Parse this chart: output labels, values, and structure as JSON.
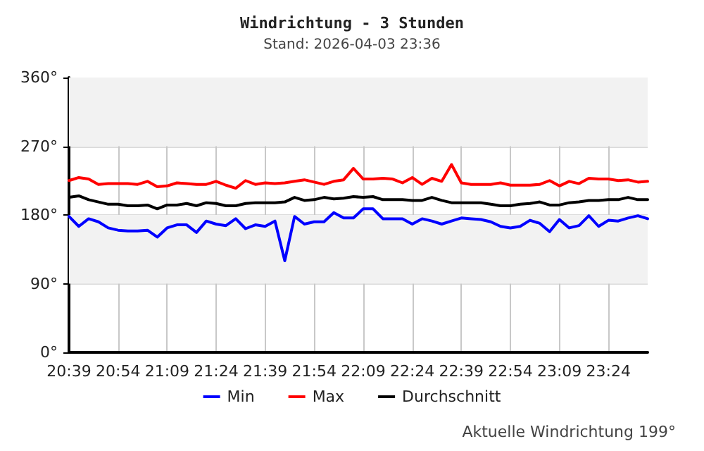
{
  "chart_data": {
    "type": "line",
    "title": "Windrichtung - 3 Stunden",
    "subtitle": "Stand: 2026-04-03 23:36",
    "annotations": [
      "Aktuelle Windrichtung 199°"
    ],
    "x": [
      20.65,
      20.7,
      20.75,
      20.8,
      20.85,
      20.9,
      20.95,
      21.0,
      21.05,
      21.1,
      21.15,
      21.2,
      21.25,
      21.3,
      21.35,
      21.4,
      21.45,
      21.5,
      21.55,
      21.6,
      21.65,
      21.7,
      21.75,
      21.8,
      21.85,
      21.9,
      21.95,
      22.0,
      22.05,
      22.1,
      22.15,
      22.2,
      22.25,
      22.3,
      22.35,
      22.4,
      22.45,
      22.5,
      22.55,
      22.6,
      22.65,
      22.7,
      22.75,
      22.8,
      22.85,
      22.9,
      22.95,
      23.0,
      23.05,
      23.1,
      23.15,
      23.2,
      23.25,
      23.3,
      23.35,
      23.4,
      23.45,
      23.5,
      23.55,
      23.6
    ],
    "series": [
      {
        "name": "Min",
        "color": "#0000ff",
        "values": [
          178,
          165,
          175,
          171,
          163,
          160,
          159,
          159,
          160,
          151,
          163,
          167,
          167,
          157,
          172,
          168,
          166,
          175,
          162,
          167,
          165,
          172,
          120,
          178,
          168,
          171,
          171,
          183,
          176,
          176,
          188,
          188,
          175,
          175,
          175,
          168,
          175,
          172,
          168,
          172,
          176,
          175,
          174,
          171,
          165,
          163,
          165,
          173,
          169,
          158,
          174,
          163,
          166,
          179,
          165,
          173,
          172,
          176,
          179,
          175
        ]
      },
      {
        "name": "Max",
        "color": "#ff0000",
        "values": [
          225,
          229,
          227,
          220,
          221,
          221,
          221,
          220,
          224,
          217,
          218,
          222,
          221,
          220,
          220,
          224,
          219,
          215,
          225,
          220,
          222,
          221,
          222,
          224,
          226,
          223,
          220,
          224,
          226,
          241,
          227,
          227,
          228,
          227,
          222,
          229,
          220,
          228,
          224,
          246,
          222,
          220,
          220,
          220,
          222,
          219,
          219,
          219,
          220,
          225,
          218,
          224,
          221,
          228,
          227,
          227,
          225,
          226,
          223,
          224
        ]
      },
      {
        "name": "Durchschnitt",
        "color": "#000000",
        "values": [
          203,
          205,
          200,
          197,
          194,
          194,
          192,
          192,
          193,
          188,
          193,
          193,
          195,
          192,
          196,
          195,
          192,
          192,
          195,
          196,
          196,
          196,
          197,
          203,
          199,
          200,
          203,
          201,
          202,
          204,
          203,
          204,
          200,
          200,
          200,
          199,
          199,
          203,
          199,
          196,
          196,
          196,
          196,
          194,
          192,
          192,
          194,
          195,
          197,
          193,
          193,
          196,
          197,
          199,
          199,
          200,
          200,
          203,
          200,
          200
        ]
      }
    ],
    "xlim": [
      20.65,
      23.6
    ],
    "xticks": [
      {
        "value": 20.65,
        "label": "20:39"
      },
      {
        "value": 20.9,
        "label": "20:54"
      },
      {
        "value": 21.15,
        "label": "21:09"
      },
      {
        "value": 21.4,
        "label": "21:24"
      },
      {
        "value": 21.65,
        "label": "21:39"
      },
      {
        "value": 21.9,
        "label": "21:54"
      },
      {
        "value": 22.15,
        "label": "22:09"
      },
      {
        "value": 22.4,
        "label": "22:24"
      },
      {
        "value": 22.65,
        "label": "22:39"
      },
      {
        "value": 22.9,
        "label": "22:54"
      },
      {
        "value": 23.15,
        "label": "23:09"
      },
      {
        "value": 23.4,
        "label": "23:24"
      }
    ],
    "ylim": [
      0,
      360
    ],
    "yticks": [
      {
        "value": 0,
        "label": "0°"
      },
      {
        "value": 90,
        "label": "90°"
      },
      {
        "value": 180,
        "label": "180°"
      },
      {
        "value": 270,
        "label": "270°"
      },
      {
        "value": 360,
        "label": "360°"
      }
    ],
    "bands": [
      {
        "axis": "y",
        "from": 270,
        "to": 360,
        "color": "#f2f2f2"
      },
      {
        "axis": "y",
        "from": 90,
        "to": 180,
        "color": "#f2f2f2"
      }
    ],
    "grid": true,
    "legend": "bottom",
    "marker": "none",
    "line_style": "solid"
  }
}
